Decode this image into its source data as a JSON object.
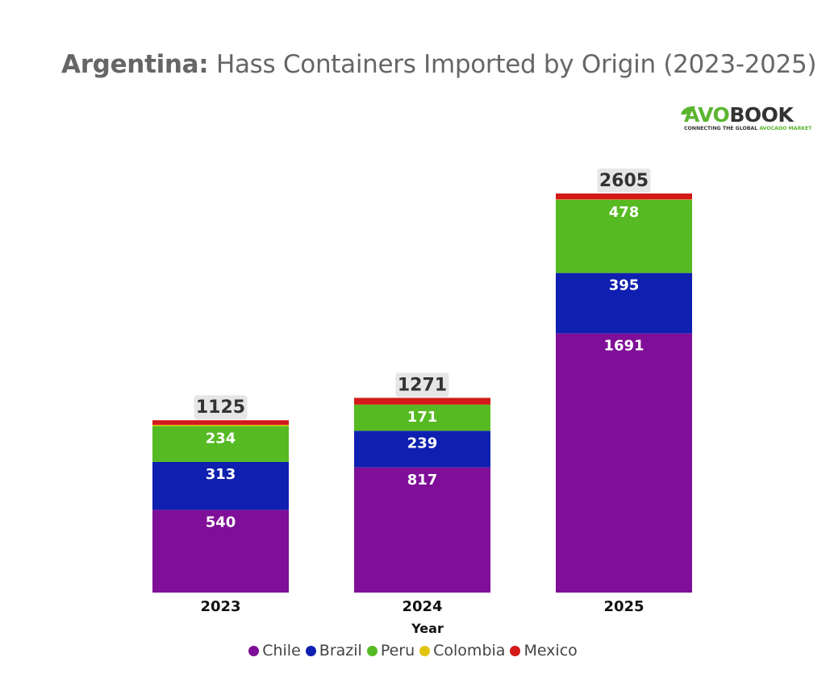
{
  "chart_data": {
    "type": "bar",
    "stacked": true,
    "title_bold": "Argentina:",
    "title_rest": "Hass Containers Imported by Origin (2023-2025)",
    "xlabel": "Year",
    "categories": [
      "2023",
      "2024",
      "2025"
    ],
    "totals": [
      1125,
      1271,
      2605
    ],
    "series": [
      {
        "name": "Chile",
        "color": "#7f0f98",
        "values": [
          540,
          817,
          1691
        ],
        "show_labels": true
      },
      {
        "name": "Brazil",
        "color": "#0f1fb0",
        "values": [
          313,
          239,
          395
        ],
        "show_labels": true
      },
      {
        "name": "Peru",
        "color": "#56ba22",
        "values": [
          234,
          171,
          478
        ],
        "show_labels": true
      },
      {
        "name": "Colombia",
        "color": "#e0c40e",
        "values": [
          8,
          0,
          2
        ],
        "show_labels": false
      },
      {
        "name": "Mexico",
        "color": "#d31919",
        "values": [
          30,
          44,
          39
        ],
        "show_labels": false
      }
    ],
    "ylim": [
      0,
      2605
    ],
    "grid": false,
    "legend_position": "bottom-center"
  },
  "logo": {
    "word_part1": "AVO",
    "word_part2": "BOOK",
    "tagline_part1": "CONNECTING THE GLOBAL ",
    "tagline_part2": "AVOCADO MARKET"
  }
}
